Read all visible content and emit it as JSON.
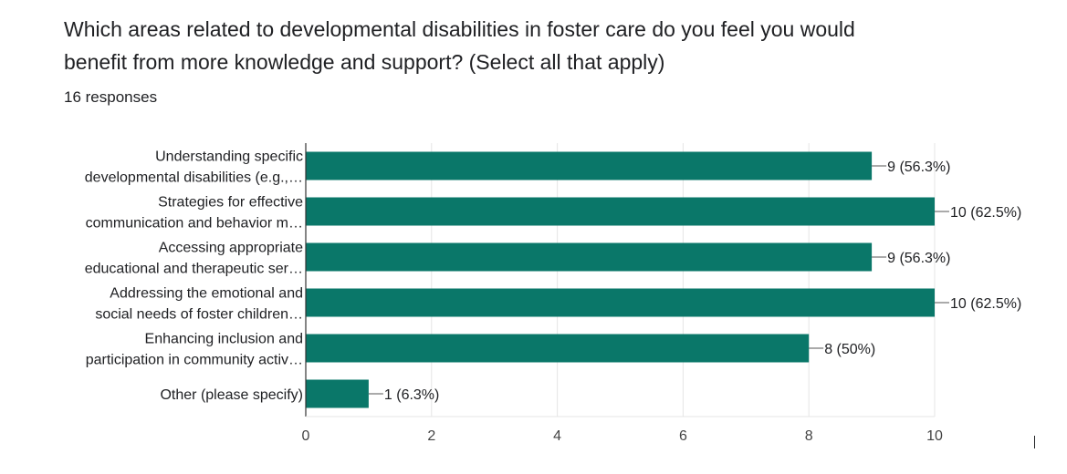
{
  "question": {
    "title_lines": [
      "Which areas related to developmental disabilities in foster care do you feel you would",
      "benefit from more knowledge and support? (Select all that apply)"
    ],
    "responses_text": "16 responses"
  },
  "colors": {
    "bar": "#0a7769",
    "grid": "#e5e5e5",
    "axis": "#333333"
  },
  "chart_data": {
    "type": "bar",
    "orientation": "horizontal",
    "categories": [
      [
        "Understanding specific",
        "developmental disabilities (e.g.,…"
      ],
      [
        "Strategies for effective",
        "communication and behavior m…"
      ],
      [
        "Accessing appropriate",
        "educational and therapeutic ser…"
      ],
      [
        "Addressing the emotional and",
        "social needs of foster children…"
      ],
      [
        "Enhancing inclusion and",
        "participation in community activ…"
      ],
      [
        "Other (please specify)"
      ]
    ],
    "values": [
      9,
      10,
      9,
      10,
      8,
      1
    ],
    "data_labels": [
      "9 (56.3%)",
      "10 (62.5%)",
      "9 (56.3%)",
      "10 (62.5%)",
      "8 (50%)",
      "1 (6.3%)"
    ],
    "xlim": [
      0,
      10
    ],
    "xticks": [
      0,
      2,
      4,
      6,
      8,
      10
    ],
    "grid": true
  }
}
